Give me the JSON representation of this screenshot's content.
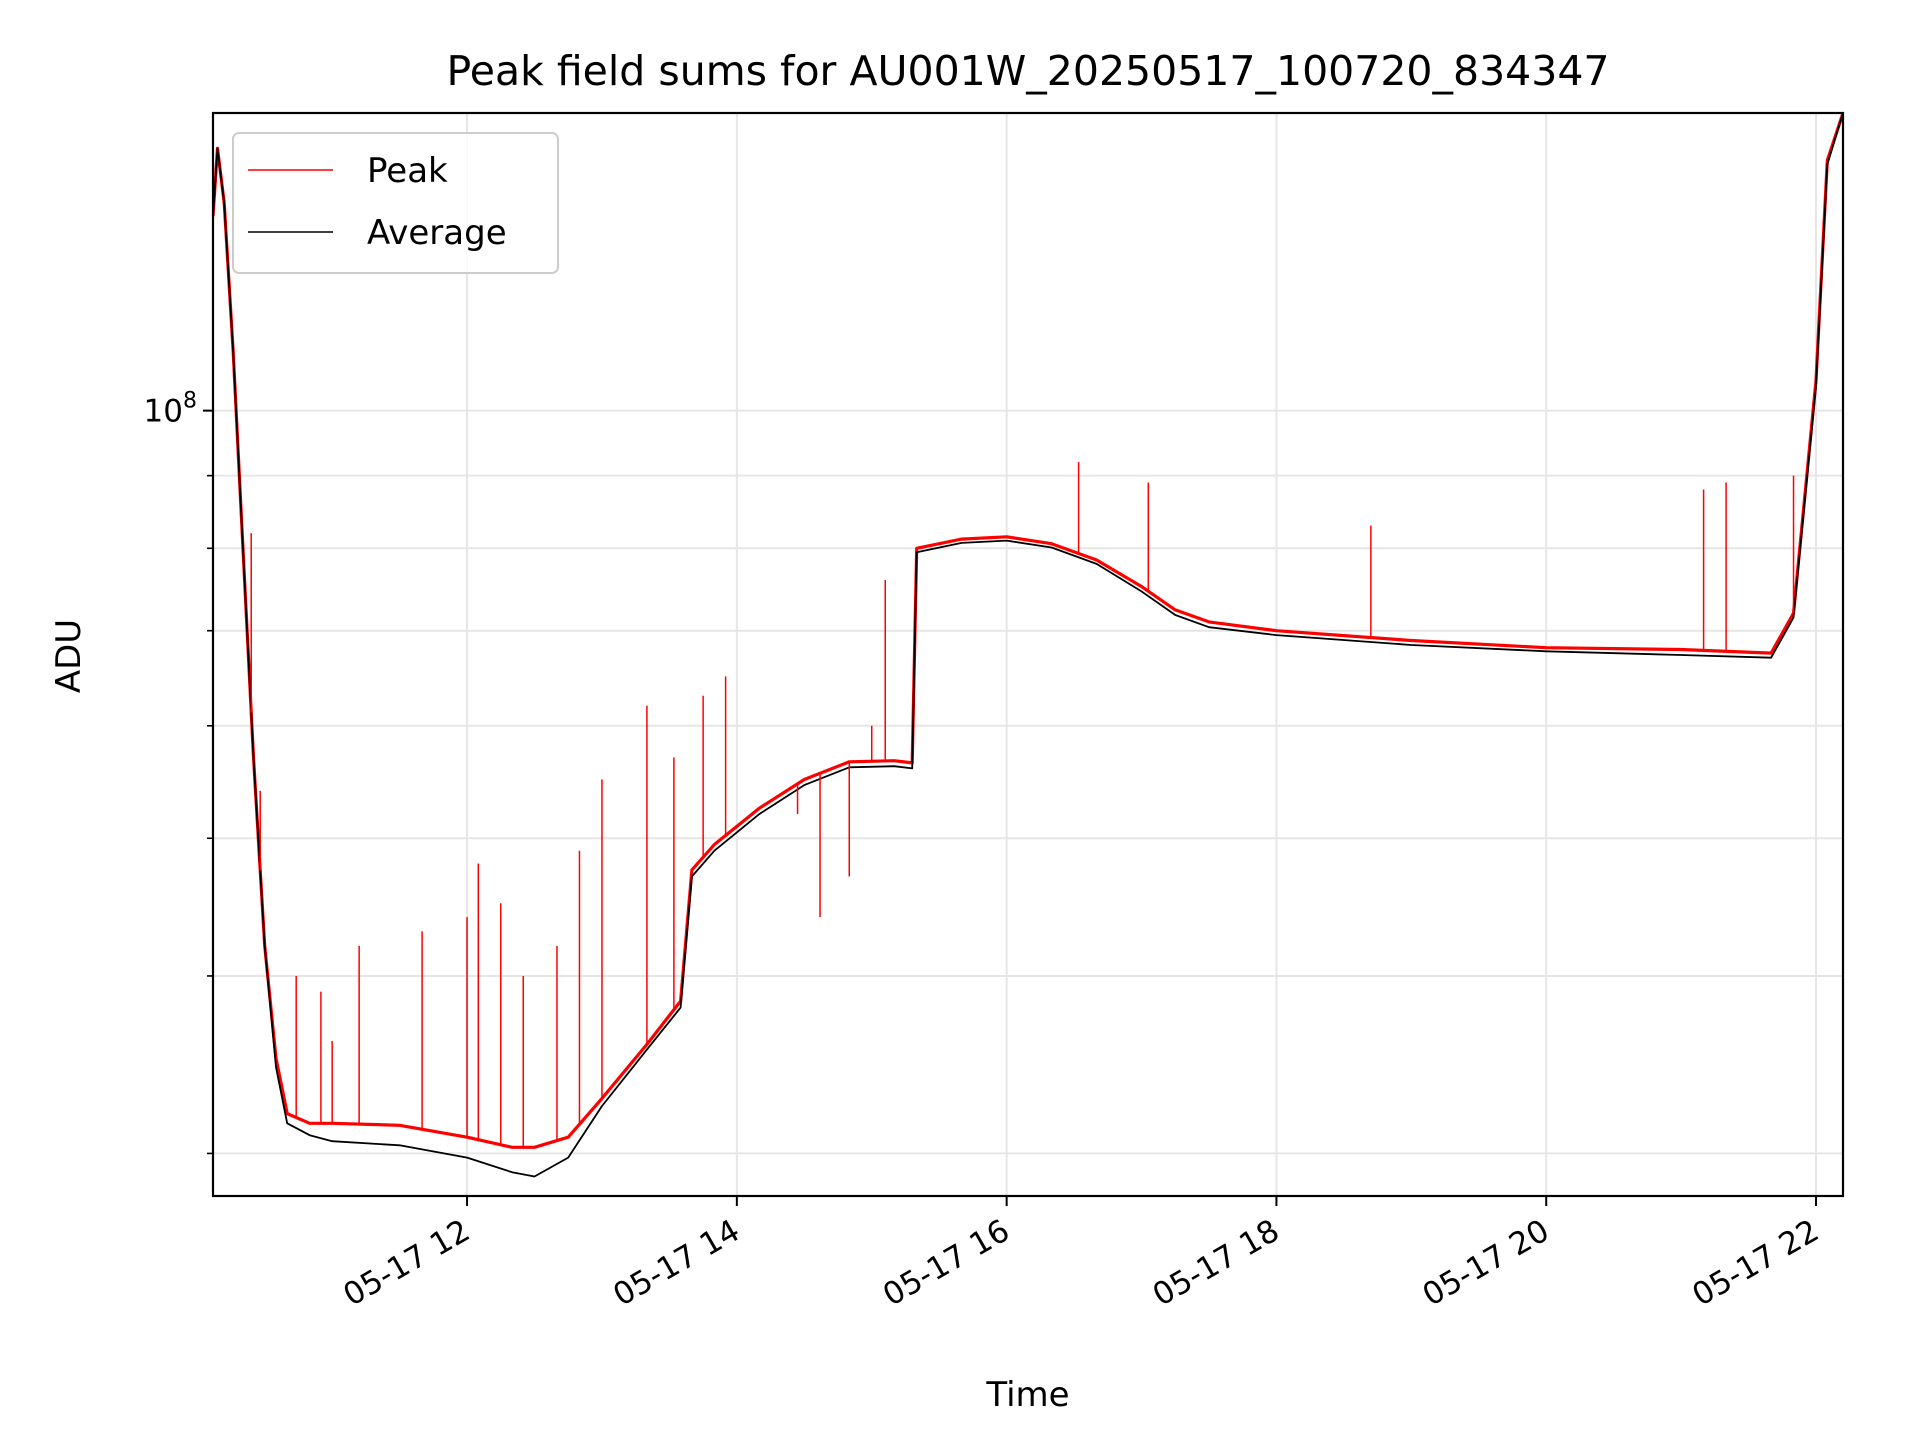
{
  "chart_data": {
    "type": "line",
    "title": "Peak field sums for AU001W_20250517_100720_834347",
    "xlabel": "Time",
    "ylabel": "ADU",
    "yscale": "log",
    "grid": true,
    "legend_position": "upper-left",
    "xlim": [
      "05-17 10:07",
      "05-17 22:12"
    ],
    "ylim": [
      28000000,
      162000000
    ],
    "x_ticks": [
      "05-17 12",
      "05-17 14",
      "05-17 16",
      "05-17 18",
      "05-17 20",
      "05-17 22"
    ],
    "y_major_tick_label": "10^8",
    "y_ticks": {
      "major": [
        100000000
      ],
      "minor": [
        30000000,
        40000000,
        50000000,
        60000000,
        70000000,
        80000000,
        90000000
      ]
    },
    "series": [
      {
        "name": "Peak",
        "color": "#ff0000",
        "points": [
          [
            "05-17 10:07",
            137000000
          ],
          [
            "05-17 10:09",
            153000000
          ],
          [
            "05-17 10:12",
            140000000
          ],
          [
            "05-17 10:16",
            110000000
          ],
          [
            "05-17 10:20",
            82000000
          ],
          [
            "05-17 10:25",
            57000000
          ],
          [
            "05-17 10:30",
            42000000
          ],
          [
            "05-17 10:35",
            35000000
          ],
          [
            "05-17 10:40",
            32000000
          ],
          [
            "05-17 10:50",
            31500000
          ],
          [
            "05-17 11:00",
            31500000
          ],
          [
            "05-17 11:30",
            31400000
          ],
          [
            "05-17 12:00",
            30800000
          ],
          [
            "05-17 12:20",
            30300000
          ],
          [
            "05-17 12:30",
            30300000
          ],
          [
            "05-17 12:45",
            30800000
          ],
          [
            "05-17 13:00",
            32800000
          ],
          [
            "05-17 13:20",
            35800000
          ],
          [
            "05-17 13:35",
            38400000
          ],
          [
            "05-17 13:40",
            47500000
          ],
          [
            "05-17 13:50",
            49500000
          ],
          [
            "05-17 14:10",
            52500000
          ],
          [
            "05-17 14:30",
            55000000
          ],
          [
            "05-17 14:50",
            56600000
          ],
          [
            "05-17 15:10",
            56700000
          ],
          [
            "05-17 15:18",
            56500000
          ],
          [
            "05-17 15:20",
            80000000
          ],
          [
            "05-17 15:40",
            81200000
          ],
          [
            "05-17 16:00",
            81500000
          ],
          [
            "05-17 16:20",
            80600000
          ],
          [
            "05-17 16:40",
            78500000
          ],
          [
            "05-17 17:00",
            75200000
          ],
          [
            "05-17 17:15",
            72400000
          ],
          [
            "05-17 17:30",
            71000000
          ],
          [
            "05-17 18:00",
            70000000
          ],
          [
            "05-17 19:00",
            68900000
          ],
          [
            "05-17 20:00",
            68100000
          ],
          [
            "05-17 21:00",
            67900000
          ],
          [
            "05-17 21:40",
            67500000
          ],
          [
            "05-17 21:50",
            72000000
          ],
          [
            "05-17 22:00",
            105000000
          ],
          [
            "05-17 22:05",
            150000000
          ],
          [
            "05-17 22:12",
            162000000
          ]
        ]
      },
      {
        "name": "Average",
        "color": "#000000",
        "points": [
          [
            "05-17 10:07",
            137000000
          ],
          [
            "05-17 10:09",
            153000000
          ],
          [
            "05-17 10:12",
            140000000
          ],
          [
            "05-17 10:16",
            110000000
          ],
          [
            "05-17 10:20",
            82000000
          ],
          [
            "05-17 10:25",
            57000000
          ],
          [
            "05-17 10:30",
            42000000
          ],
          [
            "05-17 10:35",
            34500000
          ],
          [
            "05-17 10:40",
            31500000
          ],
          [
            "05-17 10:50",
            30900000
          ],
          [
            "05-17 11:00",
            30600000
          ],
          [
            "05-17 11:30",
            30400000
          ],
          [
            "05-17 12:00",
            29800000
          ],
          [
            "05-17 12:20",
            29100000
          ],
          [
            "05-17 12:30",
            28900000
          ],
          [
            "05-17 12:45",
            29800000
          ],
          [
            "05-17 13:00",
            32400000
          ],
          [
            "05-17 13:20",
            35500000
          ],
          [
            "05-17 13:35",
            38000000
          ],
          [
            "05-17 13:40",
            47000000
          ],
          [
            "05-17 13:50",
            49000000
          ],
          [
            "05-17 14:10",
            52000000
          ],
          [
            "05-17 14:30",
            54500000
          ],
          [
            "05-17 14:50",
            56100000
          ],
          [
            "05-17 15:10",
            56200000
          ],
          [
            "05-17 15:18",
            56000000
          ],
          [
            "05-17 15:20",
            79500000
          ],
          [
            "05-17 15:40",
            80700000
          ],
          [
            "05-17 16:00",
            81000000
          ],
          [
            "05-17 16:20",
            80100000
          ],
          [
            "05-17 16:40",
            78000000
          ],
          [
            "05-17 17:00",
            74600000
          ],
          [
            "05-17 17:15",
            71800000
          ],
          [
            "05-17 17:30",
            70400000
          ],
          [
            "05-17 18:00",
            69500000
          ],
          [
            "05-17 19:00",
            68400000
          ],
          [
            "05-17 20:00",
            67700000
          ],
          [
            "05-17 21:00",
            67300000
          ],
          [
            "05-17 21:40",
            67000000
          ],
          [
            "05-17 21:50",
            71500000
          ],
          [
            "05-17 22:00",
            104000000
          ],
          [
            "05-17 22:05",
            149000000
          ],
          [
            "05-17 22:12",
            162000000
          ]
        ]
      }
    ],
    "peak_spikes": [
      [
        "05-17 10:24",
        82000000
      ],
      [
        "05-17 10:28",
        54000000
      ],
      [
        "05-17 10:44",
        40000000
      ],
      [
        "05-17 10:55",
        39000000
      ],
      [
        "05-17 11:00",
        36000000
      ],
      [
        "05-17 11:12",
        42000000
      ],
      [
        "05-17 11:40",
        43000000
      ],
      [
        "05-17 12:00",
        44000000
      ],
      [
        "05-17 12:05",
        48000000
      ],
      [
        "05-17 12:15",
        45000000
      ],
      [
        "05-17 12:25",
        40000000
      ],
      [
        "05-17 12:40",
        42000000
      ],
      [
        "05-17 12:50",
        49000000
      ],
      [
        "05-17 13:00",
        55000000
      ],
      [
        "05-17 13:20",
        62000000
      ],
      [
        "05-17 13:32",
        57000000
      ],
      [
        "05-17 13:45",
        63000000
      ],
      [
        "05-17 13:55",
        65000000
      ],
      [
        "05-17 14:27",
        52000000
      ],
      [
        "05-17 14:37",
        44000000
      ],
      [
        "05-17 14:50",
        47000000
      ],
      [
        "05-17 15:00",
        60000000
      ],
      [
        "05-17 15:06",
        76000000
      ],
      [
        "05-17 16:32",
        92000000
      ],
      [
        "05-17 17:03",
        89000000
      ],
      [
        "05-17 18:42",
        83000000
      ],
      [
        "05-17 21:10",
        88000000
      ],
      [
        "05-17 21:20",
        89000000
      ],
      [
        "05-17 21:50",
        90000000
      ]
    ]
  }
}
